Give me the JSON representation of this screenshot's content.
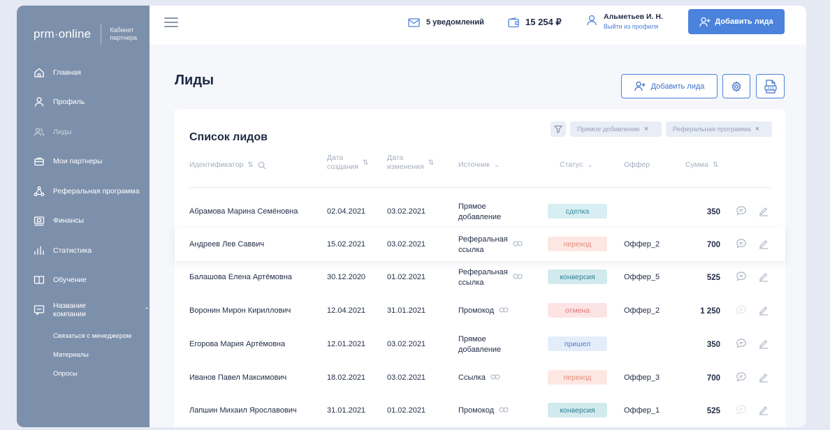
{
  "sidebar": {
    "logo": "prm·online",
    "cabinet": [
      "Кабинет",
      "партнера"
    ],
    "items": [
      {
        "label": "Главная",
        "icon": "home-icon"
      },
      {
        "label": "Профиль",
        "icon": "user-icon"
      },
      {
        "label": "Лиды",
        "icon": "users-icon",
        "active": true
      },
      {
        "label": "Мои партнеры",
        "icon": "briefcase-icon"
      },
      {
        "label": "Реферальная программа",
        "icon": "network-icon"
      },
      {
        "label": "Финансы",
        "icon": "wallet-icon"
      },
      {
        "label": "Статистика",
        "icon": "bar-chart-icon"
      },
      {
        "label": "Обучение",
        "icon": "book-icon"
      },
      {
        "label": "Название компании",
        "icon": "chat-icon",
        "expanded": true
      }
    ],
    "subitems": [
      "Связаться с менеджером",
      "Материалы",
      "Опросы"
    ]
  },
  "topbar": {
    "notifications": "5 уведомлений",
    "balance": "15 254 ₽",
    "user_name": "Альметьев И. Н.",
    "logout": "Выйти из профиля",
    "add_lead": "Добавить лида"
  },
  "page": {
    "title": "Лиды",
    "add_lead": "Добавить лида"
  },
  "card": {
    "title": "Список лидов",
    "chips": [
      "Прямое добавление",
      "Реферальная программа"
    ],
    "columns": {
      "id": "Идентификатор",
      "created": [
        "Дата",
        "создания"
      ],
      "changed": [
        "Дата",
        "изменения"
      ],
      "source": "Источник",
      "status": "Статус",
      "offer": "Оффер",
      "sum": "Сумма"
    },
    "rows": [
      {
        "name": "Абрамова Марина Семёновна",
        "created": "02.04.2021",
        "changed": "03.02.2021",
        "source": [
          "Прямое",
          "добавление"
        ],
        "link": false,
        "status": "сделка",
        "status_kind": "deal",
        "offer": "",
        "sum": "350",
        "chat_active": true
      },
      {
        "name": "Андреев Лев Саввич",
        "created": "15.02.2021",
        "changed": "03.02.2021",
        "source": [
          "Реферальная",
          "ссылка"
        ],
        "link": true,
        "status": "переход",
        "status_kind": "click",
        "offer": "Оффер_2",
        "sum": "700",
        "chat_active": true
      },
      {
        "name": "Балашова Елена Артёмовна",
        "created": "30.12.2020",
        "changed": "01.02.2021",
        "source": [
          "Реферальная",
          "ссылка"
        ],
        "link": true,
        "status": "конверсия",
        "status_kind": "conversion",
        "offer": "Оффер_5",
        "sum": "525",
        "chat_active": true
      },
      {
        "name": "Воронин Мирон Кириллович",
        "created": "12.04.2021",
        "changed": "31.01.2021",
        "source": [
          "Промокод"
        ],
        "link": true,
        "status": "отмена",
        "status_kind": "cancel",
        "offer": "Оффер_2",
        "sum": "1 250",
        "chat_active": false
      },
      {
        "name": "Егорова Мария Артёмовна",
        "created": "12.01.2021",
        "changed": "03.02.2021",
        "source": [
          "Прямое",
          "добавление"
        ],
        "link": false,
        "status": "пришел",
        "status_kind": "came",
        "offer": "",
        "sum": "350",
        "chat_active": true
      },
      {
        "name": "Иванов Павел Максимович",
        "created": "18.02.2021",
        "changed": "03.02.2021",
        "source": [
          "Ссылка"
        ],
        "link": true,
        "status": "переход",
        "status_kind": "click",
        "offer": "Оффер_3",
        "sum": "700",
        "chat_active": true
      },
      {
        "name": "Лапшин Михаил Ярославович",
        "created": "31.01.2021",
        "changed": "01.02.2021",
        "source": [
          "Промокод"
        ],
        "link": true,
        "status": "конверсия",
        "status_kind": "conversion",
        "offer": "Оффер_1",
        "sum": "525",
        "chat_active": false
      }
    ]
  },
  "colors": {
    "sidebar": "#7d90ab",
    "accent": "#4a82dc",
    "deal": "#d7eef2",
    "click": "#fde7e2",
    "conversion": "#d2eaee",
    "cancel": "#fde4e4",
    "came": "#e4eefb"
  }
}
